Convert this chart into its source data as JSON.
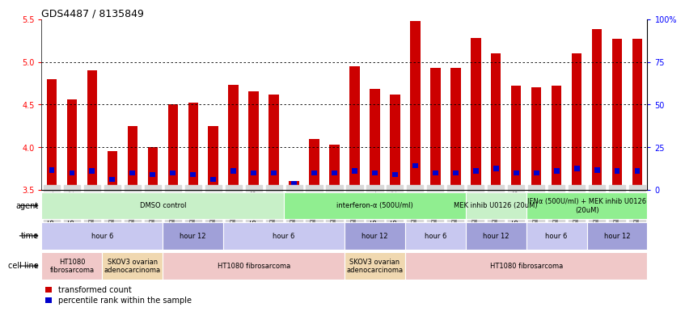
{
  "title": "GDS4487 / 8135849",
  "samples": [
    "GSM768611",
    "GSM768612",
    "GSM768613",
    "GSM768635",
    "GSM768636",
    "GSM768637",
    "GSM768614",
    "GSM768615",
    "GSM768616",
    "GSM768617",
    "GSM768618",
    "GSM768619",
    "GSM768638",
    "GSM768639",
    "GSM768640",
    "GSM768620",
    "GSM768621",
    "GSM768622",
    "GSM768623",
    "GSM768624",
    "GSM768625",
    "GSM768626",
    "GSM768627",
    "GSM768628",
    "GSM768629",
    "GSM768630",
    "GSM768631",
    "GSM768632",
    "GSM768633",
    "GSM768634"
  ],
  "red_values": [
    4.8,
    4.56,
    4.9,
    3.95,
    4.25,
    4.0,
    4.5,
    4.52,
    4.25,
    4.73,
    4.65,
    4.62,
    3.6,
    4.1,
    4.03,
    4.95,
    4.68,
    4.62,
    5.48,
    4.93,
    4.93,
    5.28,
    5.1,
    4.72,
    4.7,
    4.72,
    5.1,
    5.38,
    5.27,
    5.27
  ],
  "blue_values": [
    3.73,
    3.7,
    3.72,
    3.62,
    3.7,
    3.68,
    3.7,
    3.68,
    3.62,
    3.72,
    3.7,
    3.7,
    3.57,
    3.7,
    3.7,
    3.72,
    3.7,
    3.68,
    3.78,
    3.7,
    3.7,
    3.72,
    3.75,
    3.7,
    3.7,
    3.72,
    3.75,
    3.73,
    3.72,
    3.72
  ],
  "ymin": 3.5,
  "ymax": 5.5,
  "yticks": [
    3.5,
    4.0,
    4.5,
    5.0,
    5.5
  ],
  "right_yticks": [
    0,
    25,
    50,
    75,
    100
  ],
  "agent_groups": [
    {
      "label": "DMSO control",
      "start": 0,
      "end": 12,
      "color": "#c8f0c8"
    },
    {
      "label": "interferon-α (500U/ml)",
      "start": 12,
      "end": 21,
      "color": "#90ee90"
    },
    {
      "label": "MEK inhib U0126 (20uM)",
      "start": 21,
      "end": 24,
      "color": "#c8f0c8"
    },
    {
      "label": "IFNα (500U/ml) + MEK inhib U0126\n(20uM)",
      "start": 24,
      "end": 30,
      "color": "#90ee90"
    }
  ],
  "time_groups": [
    {
      "label": "hour 6",
      "start": 0,
      "end": 6,
      "color": "#c8c8f0"
    },
    {
      "label": "hour 12",
      "start": 6,
      "end": 9,
      "color": "#a0a0d8"
    },
    {
      "label": "hour 6",
      "start": 9,
      "end": 15,
      "color": "#c8c8f0"
    },
    {
      "label": "hour 12",
      "start": 15,
      "end": 18,
      "color": "#a0a0d8"
    },
    {
      "label": "hour 6",
      "start": 18,
      "end": 21,
      "color": "#c8c8f0"
    },
    {
      "label": "hour 12",
      "start": 21,
      "end": 24,
      "color": "#a0a0d8"
    },
    {
      "label": "hour 6",
      "start": 24,
      "end": 27,
      "color": "#c8c8f0"
    },
    {
      "label": "hour 12",
      "start": 27,
      "end": 30,
      "color": "#a0a0d8"
    }
  ],
  "cell_groups": [
    {
      "label": "HT1080\nfibrosarcoma",
      "start": 0,
      "end": 3,
      "color": "#f0c8c8"
    },
    {
      "label": "SKOV3 ovarian\nadenocarcinoma",
      "start": 3,
      "end": 6,
      "color": "#f0d8b0"
    },
    {
      "label": "HT1080 fibrosarcoma",
      "start": 6,
      "end": 15,
      "color": "#f0c8c8"
    },
    {
      "label": "SKOV3 ovarian\nadenocarcinoma",
      "start": 15,
      "end": 18,
      "color": "#f0d8b0"
    },
    {
      "label": "HT1080 fibrosarcoma",
      "start": 18,
      "end": 30,
      "color": "#f0c8c8"
    }
  ],
  "bar_width": 0.5,
  "red_color": "#cc0000",
  "blue_color": "#0000cc",
  "legend_red": "transformed count",
  "legend_blue": "percentile rank within the sample",
  "row_labels": [
    "agent",
    "time",
    "cell line"
  ],
  "grid_color": "#888888",
  "tick_bg": "#d8d8d8"
}
